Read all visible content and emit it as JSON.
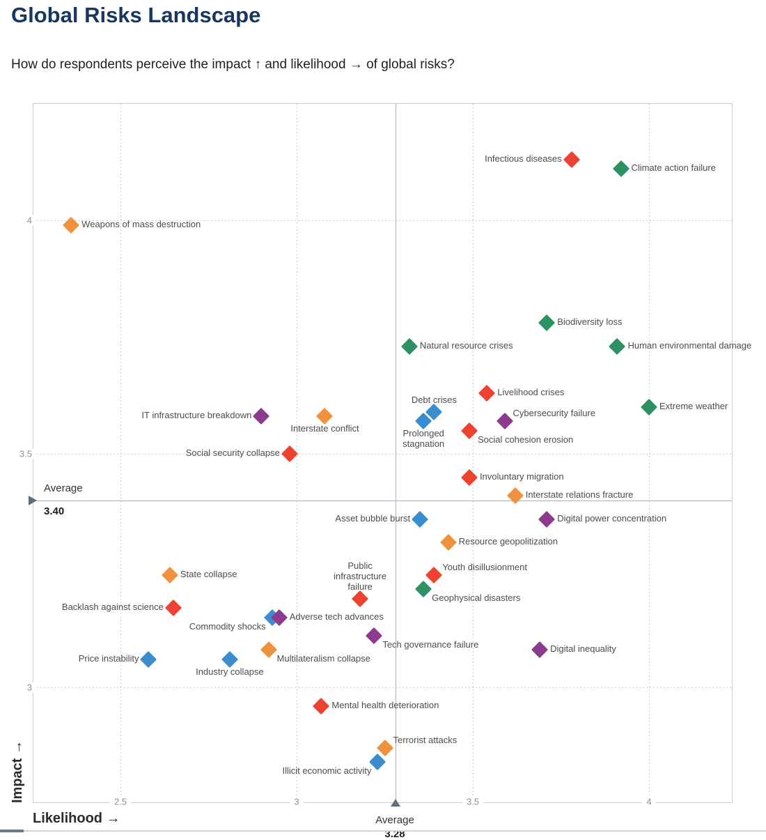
{
  "page": {
    "title": "Global Risks Landscape",
    "subtitle": "How do respondents perceive the impact ↑ and likelihood → of global risks?"
  },
  "chart_data": {
    "type": "scatter",
    "title": "Global Risks Landscape",
    "xlabel": "Likelihood →",
    "ylabel": "Impact →",
    "grid": "dotted",
    "marker": "diamond",
    "xlim": [
      2.25,
      4.24
    ],
    "ylim": [
      2.76,
      4.25
    ],
    "x_ticks": [
      {
        "value": 2.5,
        "label": "2.5"
      },
      {
        "value": 3.0,
        "label": "3"
      },
      {
        "value": 3.5,
        "label": "3.5"
      },
      {
        "value": 4.0,
        "label": "4"
      }
    ],
    "y_ticks": [
      {
        "value": 4.0,
        "label": "4"
      },
      {
        "value": 3.5,
        "label": "3.5"
      },
      {
        "value": 3.0,
        "label": "3"
      }
    ],
    "average_likelihood": {
      "label": "Average",
      "value": "3.28",
      "numeric": 3.28
    },
    "average_impact": {
      "label": "Average",
      "value": "3.40",
      "numeric": 3.4
    },
    "categories": {
      "economic": {
        "color": "#3a8dce"
      },
      "environmental": {
        "color": "#2d9164"
      },
      "geopolitical": {
        "color": "#f0913d"
      },
      "societal": {
        "color": "#ef4130"
      },
      "technological": {
        "color": "#8e3a8e"
      }
    },
    "points": [
      {
        "name": "Infectious diseases",
        "label": "Infectious diseases",
        "likelihood": 3.78,
        "impact": 4.13,
        "category": "societal",
        "placement": "left"
      },
      {
        "name": "Climate action failure",
        "label": "Climate action failure",
        "likelihood": 3.92,
        "impact": 4.11,
        "category": "environmental",
        "placement": "right"
      },
      {
        "name": "Weapons of mass destruction",
        "label": "Weapons of mass destruction",
        "likelihood": 2.36,
        "impact": 3.99,
        "category": "geopolitical",
        "placement": "right"
      },
      {
        "name": "Biodiversity loss",
        "label": "Biodiversity loss",
        "likelihood": 3.71,
        "impact": 3.78,
        "category": "environmental",
        "placement": "right"
      },
      {
        "name": "Natural resource crises",
        "label": "Natural resource crises",
        "likelihood": 3.32,
        "impact": 3.73,
        "category": "environmental",
        "placement": "right"
      },
      {
        "name": "Human environmental damage",
        "label": "Human environmental damage",
        "likelihood": 3.91,
        "impact": 3.73,
        "category": "environmental",
        "placement": "right"
      },
      {
        "name": "Livelihood crises",
        "label": "Livelihood crises",
        "likelihood": 3.54,
        "impact": 3.63,
        "category": "societal",
        "placement": "right"
      },
      {
        "name": "Extreme weather",
        "label": "Extreme weather",
        "likelihood": 4.0,
        "impact": 3.6,
        "category": "environmental",
        "placement": "right"
      },
      {
        "name": "Prolonged stagnation",
        "label": "Prolonged\nstagnation",
        "likelihood": 3.36,
        "impact": 3.57,
        "category": "economic",
        "placement": "below"
      },
      {
        "name": "Debt crises",
        "label": "Debt crises",
        "likelihood": 3.39,
        "impact": 3.59,
        "category": "economic",
        "placement": "above"
      },
      {
        "name": "Social cohesion erosion",
        "label": "Social cohesion erosion",
        "likelihood": 3.49,
        "impact": 3.55,
        "category": "societal",
        "placement": "below-right"
      },
      {
        "name": "Cybersecurity failure",
        "label": "Cybersecurity failure",
        "likelihood": 3.59,
        "impact": 3.57,
        "category": "technological",
        "placement": "above-right"
      },
      {
        "name": "IT infrastructure breakdown",
        "label": "IT infrastructure breakdown",
        "likelihood": 2.9,
        "impact": 3.58,
        "category": "technological",
        "placement": "left"
      },
      {
        "name": "Interstate conflict",
        "label": "Interstate conflict",
        "likelihood": 3.08,
        "impact": 3.58,
        "category": "geopolitical",
        "placement": "below"
      },
      {
        "name": "Social security collapse",
        "label": "Social security collapse",
        "likelihood": 2.98,
        "impact": 3.5,
        "category": "societal",
        "placement": "left"
      },
      {
        "name": "Involuntary migration",
        "label": "Involuntary migration",
        "likelihood": 3.49,
        "impact": 3.45,
        "category": "societal",
        "placement": "right"
      },
      {
        "name": "Interstate relations fracture",
        "label": "Interstate relations fracture",
        "likelihood": 3.62,
        "impact": 3.41,
        "category": "geopolitical",
        "placement": "right"
      },
      {
        "name": "Digital power concentration",
        "label": "Digital power concentration",
        "likelihood": 3.71,
        "impact": 3.36,
        "category": "technological",
        "placement": "right"
      },
      {
        "name": "Asset bubble burst",
        "label": "Asset bubble burst",
        "likelihood": 3.35,
        "impact": 3.36,
        "category": "economic",
        "placement": "left"
      },
      {
        "name": "Resource geopolitization",
        "label": "Resource geopolitization",
        "likelihood": 3.43,
        "impact": 3.31,
        "category": "geopolitical",
        "placement": "right"
      },
      {
        "name": "State collapse",
        "label": "State collapse",
        "likelihood": 2.64,
        "impact": 3.24,
        "category": "geopolitical",
        "placement": "right"
      },
      {
        "name": "Geophysical disasters",
        "label": "Geophysical disasters",
        "likelihood": 3.36,
        "impact": 3.21,
        "category": "environmental",
        "placement": "below-right"
      },
      {
        "name": "Youth disillusionment",
        "label": "Youth disillusionment",
        "likelihood": 3.39,
        "impact": 3.24,
        "category": "societal",
        "placement": "above-right"
      },
      {
        "name": "Public infrastructure failure",
        "label": "Public\ninfrastructure\nfailure",
        "likelihood": 3.18,
        "impact": 3.19,
        "category": "societal",
        "placement": "above"
      },
      {
        "name": "Backlash against science",
        "label": "Backlash against science",
        "likelihood": 2.65,
        "impact": 3.17,
        "category": "societal",
        "placement": "left"
      },
      {
        "name": "Commodity shocks",
        "label": "Commodity shocks",
        "likelihood": 2.93,
        "impact": 3.15,
        "category": "economic",
        "placement": "below-left"
      },
      {
        "name": "Adverse tech advances",
        "label": "Adverse tech advances",
        "likelihood": 2.95,
        "impact": 3.15,
        "category": "technological",
        "placement": "right"
      },
      {
        "name": "Tech governance failure",
        "label": "Tech governance failure",
        "likelihood": 3.22,
        "impact": 3.11,
        "category": "technological",
        "placement": "below-right"
      },
      {
        "name": "Multilateralism collapse",
        "label": "Multilateralism collapse",
        "likelihood": 2.92,
        "impact": 3.08,
        "category": "geopolitical",
        "placement": "below-right"
      },
      {
        "name": "Digital inequality",
        "label": "Digital inequality",
        "likelihood": 3.69,
        "impact": 3.08,
        "category": "technological",
        "placement": "right"
      },
      {
        "name": "Industry collapse",
        "label": "Industry collapse",
        "likelihood": 2.81,
        "impact": 3.06,
        "category": "economic",
        "placement": "below"
      },
      {
        "name": "Price instability",
        "label": "Price instability",
        "likelihood": 2.58,
        "impact": 3.06,
        "category": "economic",
        "placement": "left"
      },
      {
        "name": "Mental health deterioration",
        "label": "Mental health deterioration",
        "likelihood": 3.07,
        "impact": 2.96,
        "category": "societal",
        "placement": "right"
      },
      {
        "name": "Illicit economic activity",
        "label": "Illicit economic activity",
        "likelihood": 3.23,
        "impact": 2.84,
        "category": "economic",
        "placement": "below-left"
      },
      {
        "name": "Terrorist attacks",
        "label": "Terrorist attacks",
        "likelihood": 3.25,
        "impact": 2.87,
        "category": "geopolitical",
        "placement": "above-right"
      }
    ]
  }
}
